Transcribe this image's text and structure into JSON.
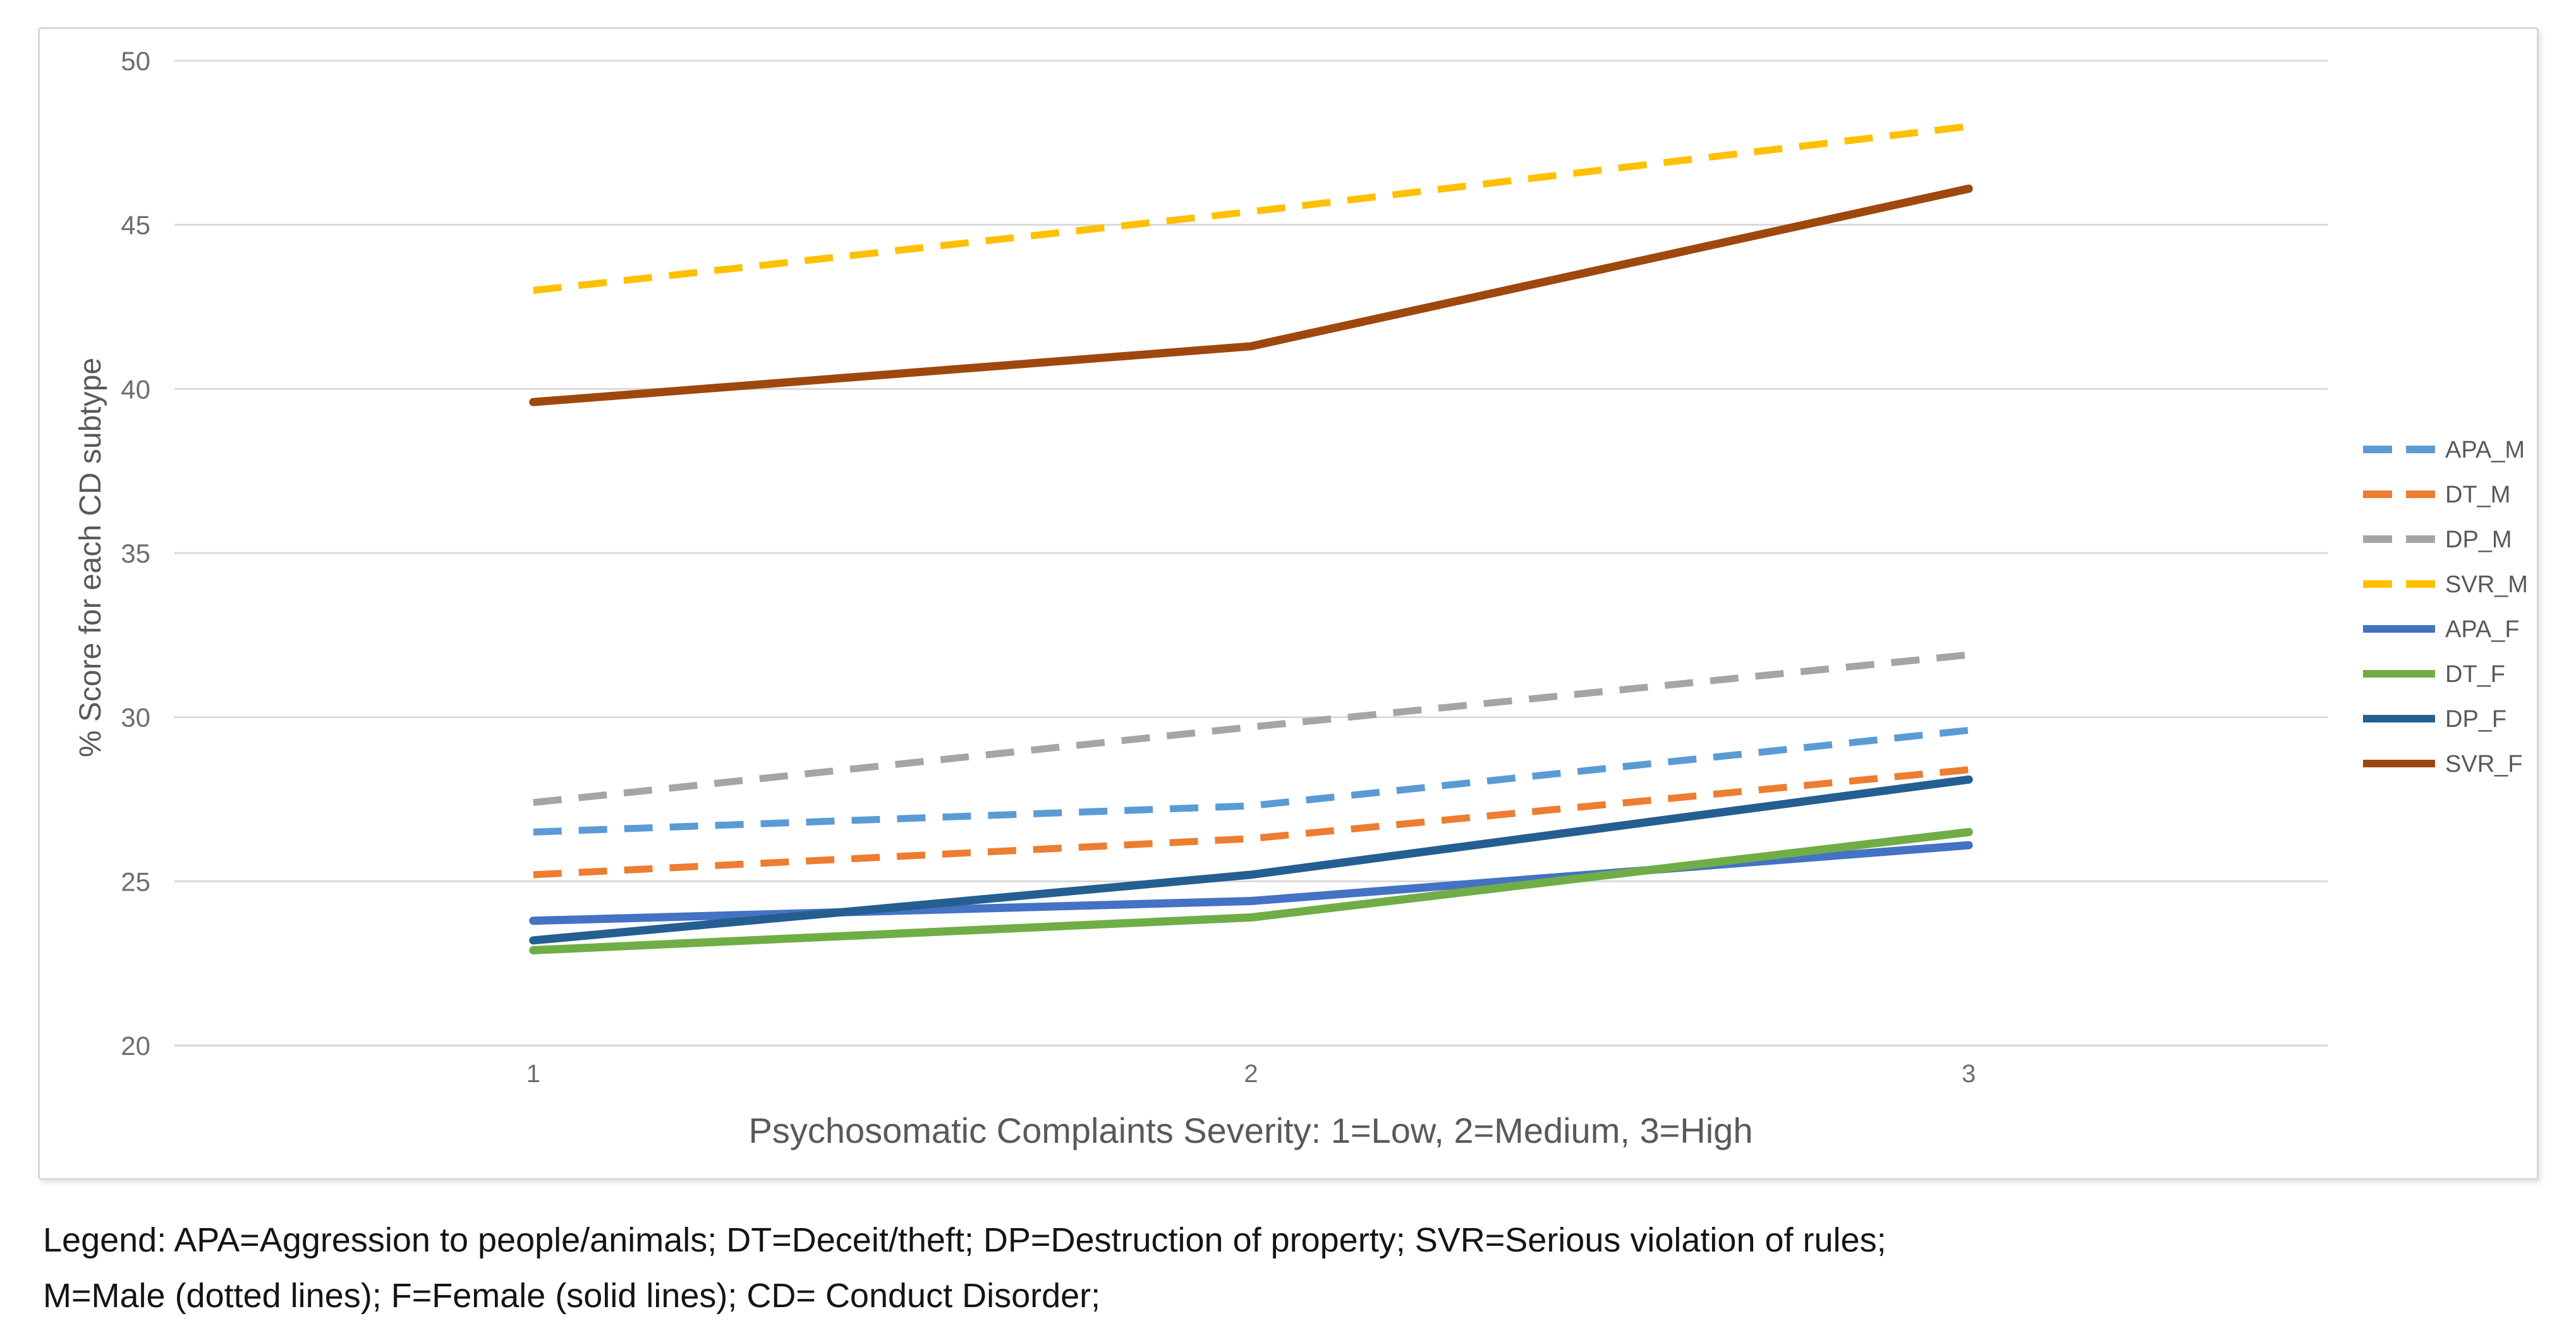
{
  "figure": {
    "caption_line1": "Legend: APA=Aggression to people/animals; DT=Deceit/theft; DP=Destruction of property; SVR=Serious violation of rules;",
    "caption_line2": "M=Male (dotted lines); F=Female (solid lines); CD= Conduct Disorder;"
  },
  "chart_data": {
    "type": "line",
    "title": "",
    "xlabel": "Psychosomatic Complaints Severity: 1=Low, 2=Medium, 3=High",
    "ylabel": "% Score for each CD subtype",
    "categories": [
      1,
      2,
      3
    ],
    "x_tick_labels": [
      "1",
      "2",
      "3"
    ],
    "yticks": [
      50,
      45,
      40,
      35,
      30,
      25,
      20
    ],
    "ylim": [
      20,
      50
    ],
    "grid": true,
    "legend_position": "right",
    "grid_color": "#D9D9D9",
    "text_color": "#595959",
    "series": [
      {
        "name": "APA_M",
        "line_style": "dashed",
        "color": "#5B9BD5",
        "values": [
          26.5,
          27.3,
          29.6
        ]
      },
      {
        "name": "DT_M",
        "line_style": "dashed",
        "color": "#ED7D31",
        "values": [
          25.2,
          26.3,
          28.4
        ]
      },
      {
        "name": "DP_M",
        "line_style": "dashed",
        "color": "#A5A5A5",
        "values": [
          27.4,
          29.7,
          31.9
        ]
      },
      {
        "name": "SVR_M",
        "line_style": "dashed",
        "color": "#FFC000",
        "values": [
          43.0,
          45.4,
          48.0
        ]
      },
      {
        "name": "APA_F",
        "line_style": "solid",
        "color": "#4472C4",
        "values": [
          23.8,
          24.4,
          26.1
        ]
      },
      {
        "name": "DT_F",
        "line_style": "solid",
        "color": "#70AD47",
        "values": [
          22.9,
          23.9,
          26.5
        ]
      },
      {
        "name": "DP_F",
        "line_style": "solid",
        "color": "#255E91",
        "values": [
          23.2,
          25.2,
          28.1
        ]
      },
      {
        "name": "SVR_F",
        "line_style": "solid",
        "color": "#9E480E",
        "values": [
          39.6,
          41.3,
          46.1
        ]
      }
    ]
  }
}
